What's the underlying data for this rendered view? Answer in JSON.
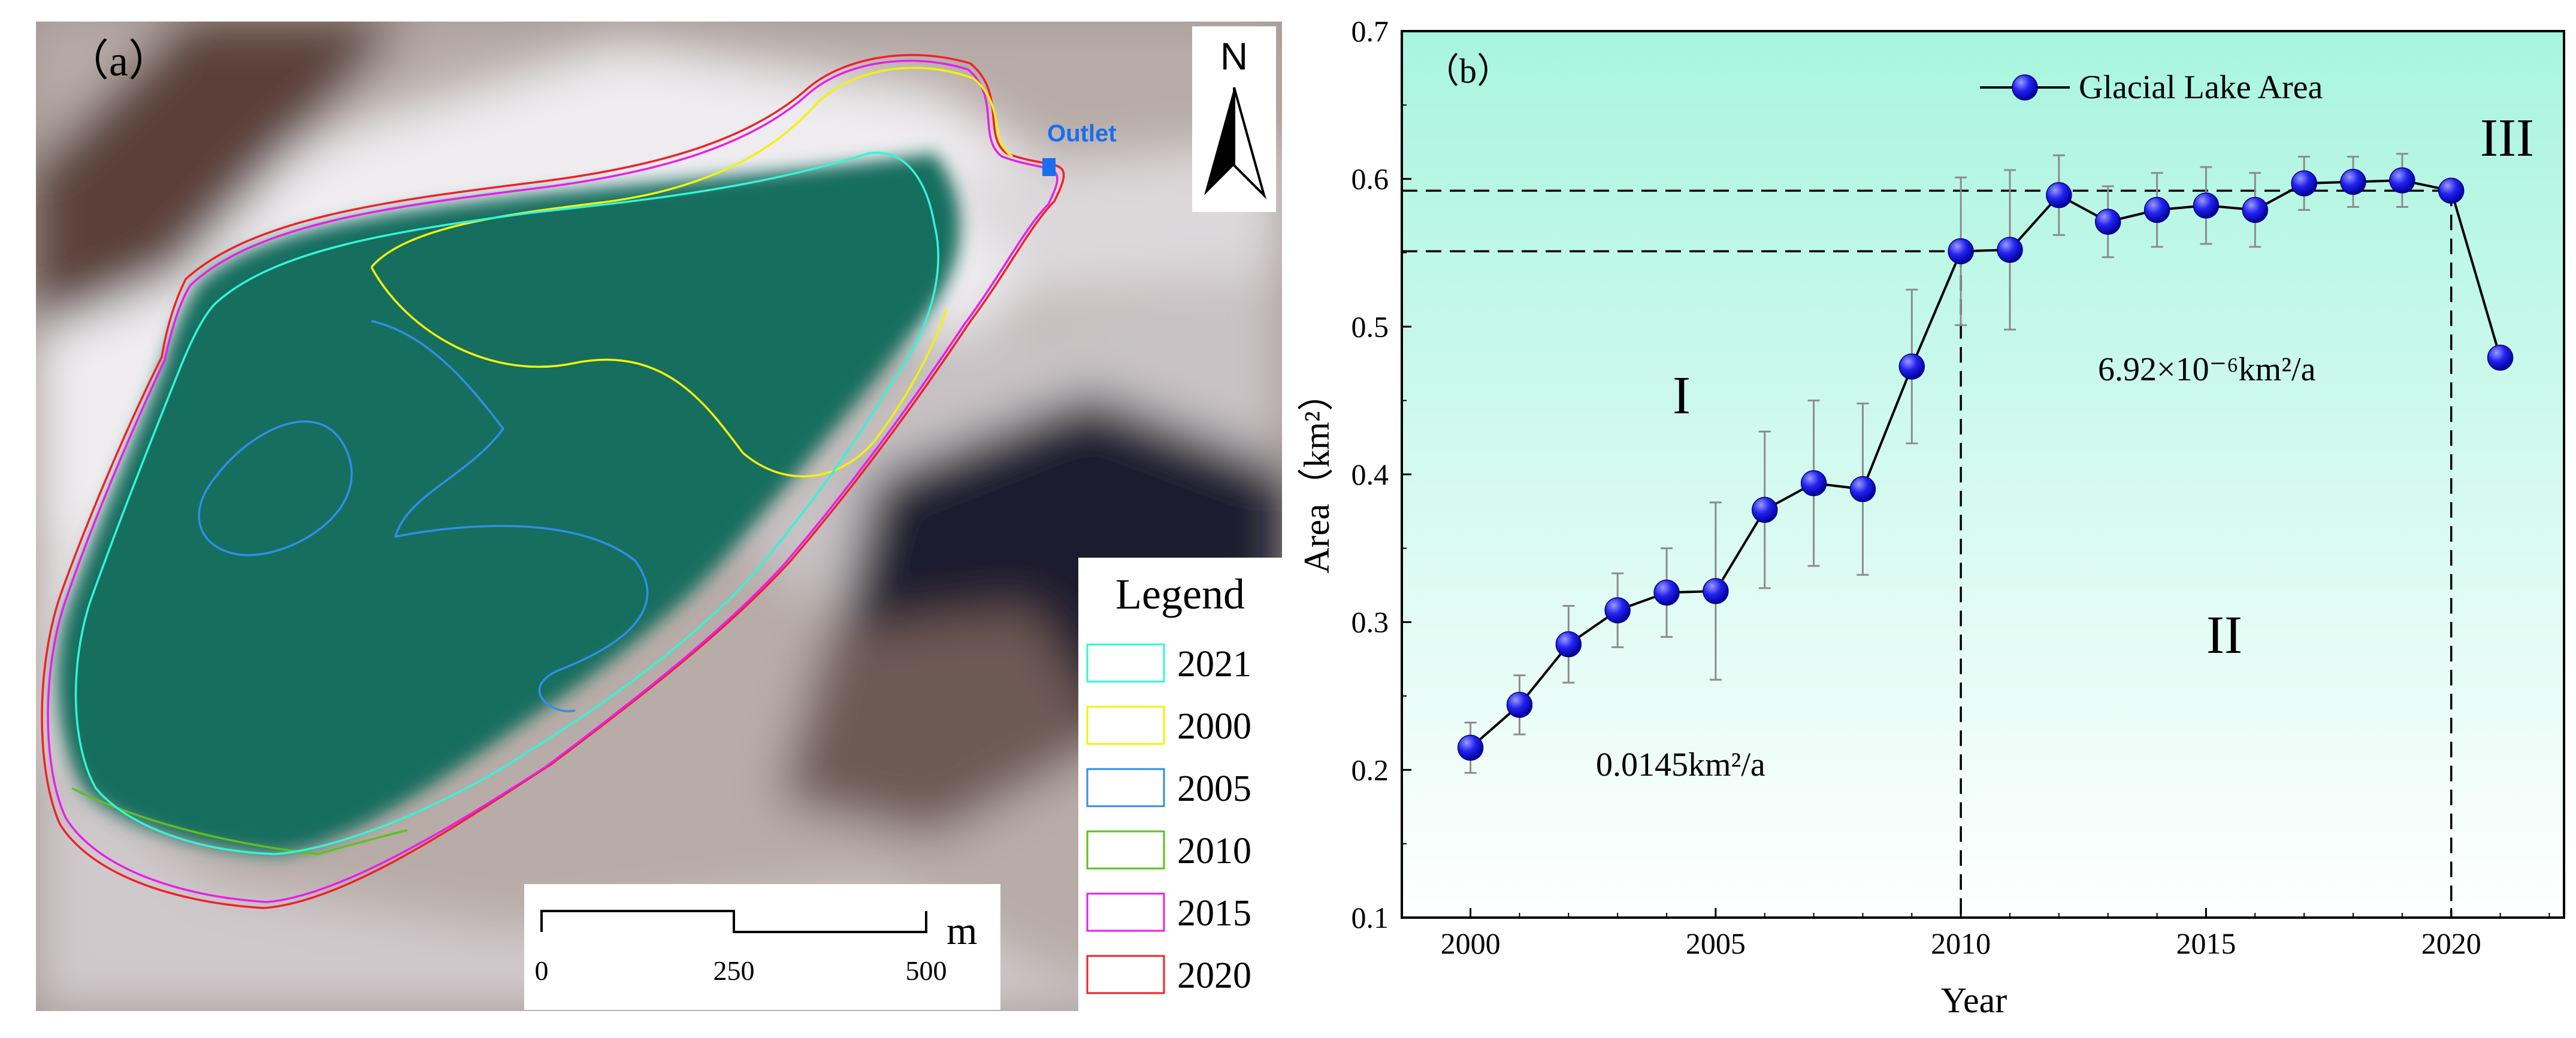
{
  "panel_a": {
    "label": "（a）",
    "north_label": "N",
    "outlet_label": "Outlet",
    "legend_title": "Legend",
    "legend_items": [
      {
        "year": "2021",
        "color": "#33f5d6"
      },
      {
        "year": "2000",
        "color": "#f2f20d"
      },
      {
        "year": "2005",
        "color": "#2f8fe8"
      },
      {
        "year": "2010",
        "color": "#5cc21c"
      },
      {
        "year": "2015",
        "color": "#e81ee8"
      },
      {
        "year": "2020",
        "color": "#f0202a"
      }
    ],
    "scale_unit": "m",
    "scale_ticks": [
      "0",
      "250",
      "500"
    ]
  },
  "chart_data": {
    "type": "line",
    "panel_label": "（b）",
    "title": "",
    "xlabel": "Year",
    "ylabel": "Area（km²）",
    "xlim": [
      1998.6,
      2022.3
    ],
    "ylim": [
      0.1,
      0.7
    ],
    "x_ticks": [
      2000,
      2005,
      2010,
      2015,
      2020
    ],
    "y_ticks": [
      "0.1",
      "0.2",
      "0.3",
      "0.4",
      "0.5",
      "0.6",
      "0.7"
    ],
    "legend": "Glacial Lake Area",
    "legend_position": "top-center",
    "series": [
      {
        "name": "Glacial Lake Area",
        "color": "#1a1aff",
        "x": [
          2000,
          2001,
          2002,
          2003,
          2004,
          2005,
          2006,
          2007,
          2008,
          2009,
          2010,
          2011,
          2012,
          2013,
          2014,
          2015,
          2016,
          2017,
          2018,
          2019,
          2020,
          2021
        ],
        "values": [
          0.215,
          0.244,
          0.285,
          0.308,
          0.32,
          0.321,
          0.376,
          0.394,
          0.39,
          0.473,
          0.551,
          0.552,
          0.589,
          0.571,
          0.579,
          0.582,
          0.579,
          0.597,
          0.598,
          0.599,
          0.592,
          0.479
        ],
        "errors": [
          0.017,
          0.02,
          0.026,
          0.025,
          0.03,
          0.06,
          0.053,
          0.056,
          0.058,
          0.052,
          0.05,
          0.054,
          0.027,
          0.024,
          0.025,
          0.026,
          0.025,
          0.018,
          0.017,
          0.018,
          null,
          null
        ]
      }
    ],
    "reference_lines": {
      "horizontal": [
        0.592,
        0.551
      ],
      "vertical": [
        2010,
        2020
      ]
    },
    "annotations": {
      "stage_1": "I",
      "stage_2": "II",
      "stage_3": "III",
      "rate_1": "0.0145km²/a",
      "rate_2": "6.92×10⁻⁶km²/a"
    }
  }
}
